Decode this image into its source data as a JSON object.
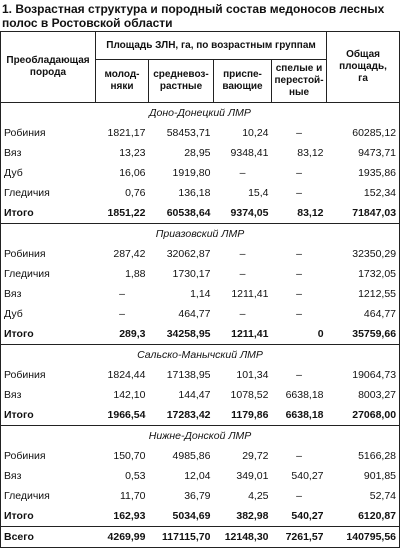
{
  "title": "1. Возрастная структура и породный состав медоносов лесных полос в Ростовской области",
  "table": {
    "header": {
      "breed": "Преобладающая порода",
      "group_title": "Площадь ЗЛН, га, по возрастным группам",
      "groups": [
        [
          "молод-",
          "няки"
        ],
        [
          "средневоз-",
          "растные"
        ],
        [
          "приспе-",
          "вающие"
        ],
        [
          "спелые и",
          "перестой-",
          "ные"
        ]
      ],
      "total": [
        "Общая",
        "площадь,",
        "га"
      ]
    },
    "sections": [
      {
        "name": "Доно-Донецкий ЛМР",
        "rows": [
          [
            "Робиния",
            "1821,17",
            "58453,71",
            "10,24",
            "–",
            "60285,12"
          ],
          [
            "Вяз",
            "13,23",
            "28,95",
            "9348,41",
            "83,12",
            "9473,71"
          ],
          [
            "Дуб",
            "16,06",
            "1919,80",
            "–",
            "–",
            "1935,86"
          ],
          [
            "Гледичия",
            "0,76",
            "136,18",
            "15,4",
            "–",
            "152,34"
          ]
        ],
        "subtotal": [
          "Итого",
          "1851,22",
          "60538,64",
          "9374,05",
          "83,12",
          "71847,03"
        ]
      },
      {
        "name": "Приазовский ЛМР",
        "rows": [
          [
            "Робиния",
            "287,42",
            "32062,87",
            "–",
            "–",
            "32350,29"
          ],
          [
            "Гледичия",
            "1,88",
            "1730,17",
            "–",
            "–",
            "1732,05"
          ],
          [
            "Вяз",
            "–",
            "1,14",
            "1211,41",
            "–",
            "1212,55"
          ],
          [
            "Дуб",
            "–",
            "464,77",
            "–",
            "–",
            "464,77"
          ]
        ],
        "subtotal": [
          "Итого",
          "289,3",
          "34258,95",
          "1211,41",
          "0",
          "35759,66"
        ]
      },
      {
        "name": "Сальско-Манычский ЛМР",
        "rows": [
          [
            "Робиния",
            "1824,44",
            "17138,95",
            "101,34",
            "–",
            "19064,73"
          ],
          [
            "Вяз",
            "142,10",
            "144,47",
            "1078,52",
            "6638,18",
            "8003,27"
          ]
        ],
        "subtotal": [
          "Итого",
          "1966,54",
          "17283,42",
          "1179,86",
          "6638,18",
          "27068,00"
        ]
      },
      {
        "name": "Нижне-Донской ЛМР",
        "rows": [
          [
            "Робиния",
            "150,70",
            "4985,86",
            "29,72",
            "–",
            "5166,28"
          ],
          [
            "Вяз",
            "0,53",
            "12,04",
            "349,01",
            "540,27",
            "901,85"
          ],
          [
            "Гледичия",
            "11,70",
            "36,79",
            "4,25",
            "–",
            "52,74"
          ]
        ],
        "subtotal": [
          "Итого",
          "162,93",
          "5034,69",
          "382,98",
          "540,27",
          "6120,87"
        ]
      }
    ],
    "grand_total": [
      "Всего",
      "4269,99",
      "117115,70",
      "12148,30",
      "7261,57",
      "140795,56"
    ]
  }
}
